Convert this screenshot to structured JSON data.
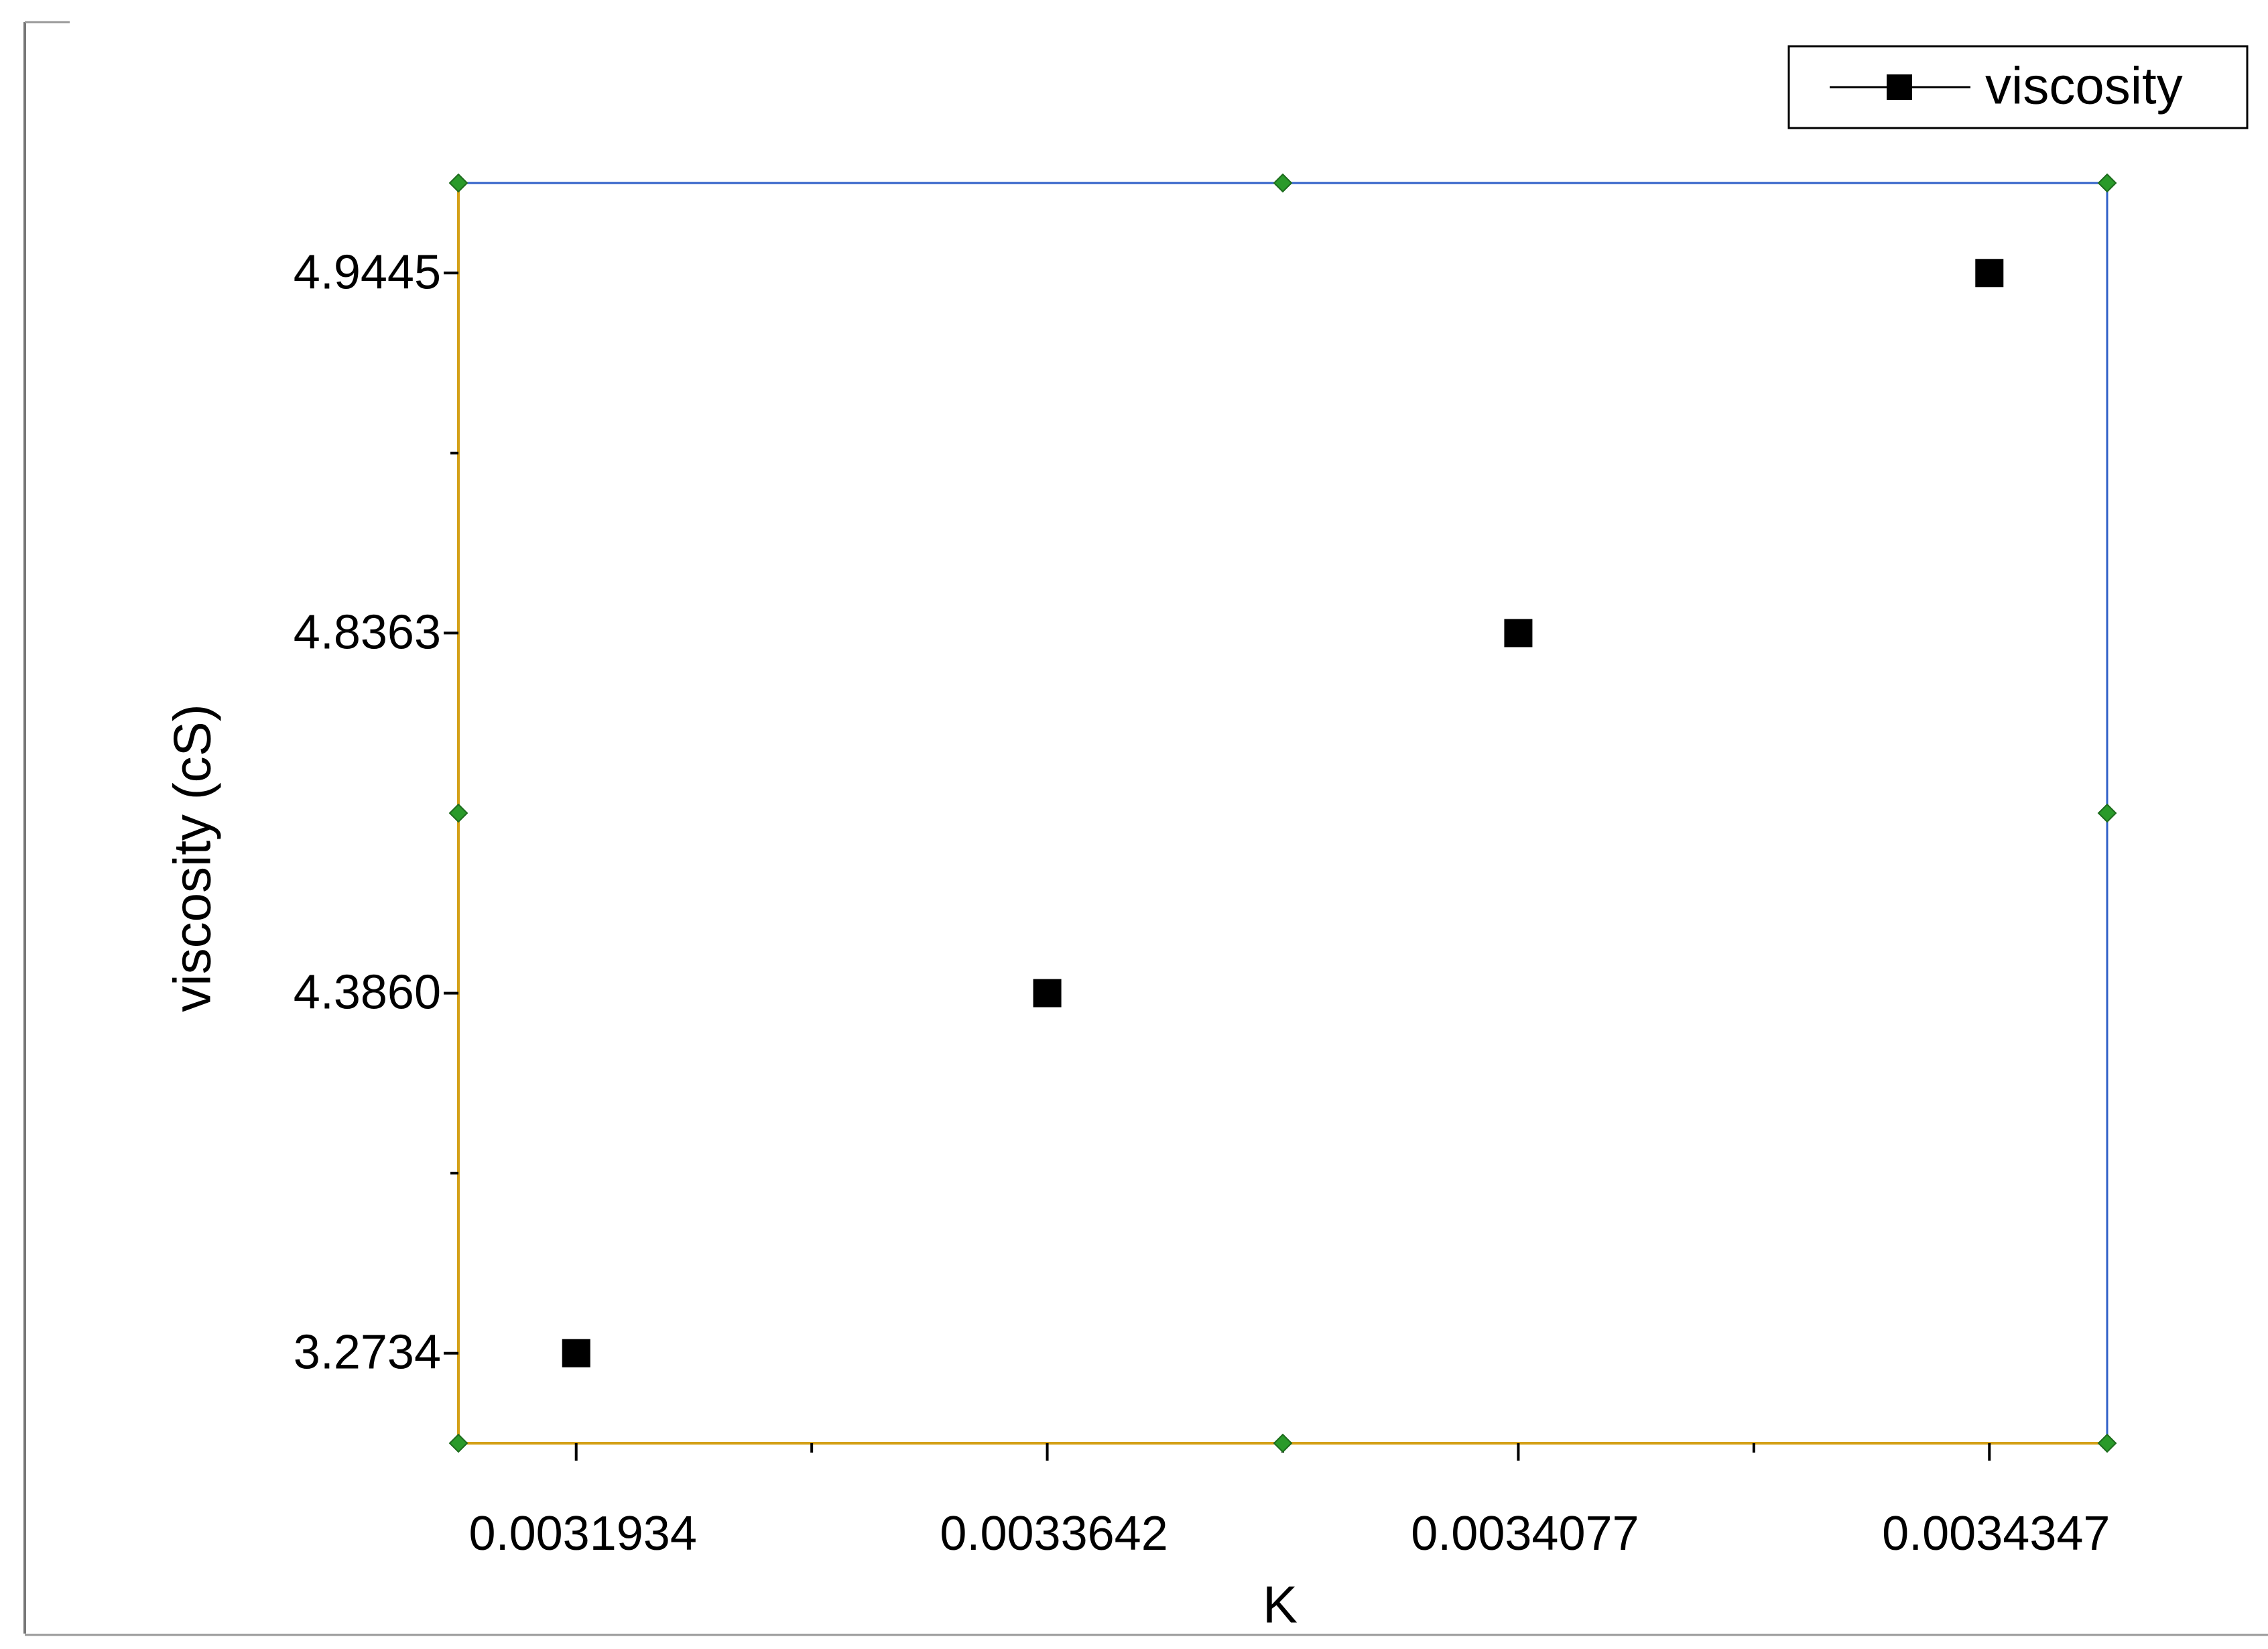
{
  "chart_data": {
    "type": "line",
    "x_label": "K",
    "y_label": "viscosity (cS)",
    "categories": [
      "0.0031934",
      "0.0033642",
      "0.0034077",
      "0.0034347"
    ],
    "series": [
      {
        "name": "viscosity",
        "color": "#000000",
        "values": [
          3.2734,
          4.386,
          4.8363,
          4.9445
        ]
      }
    ],
    "y_scale": "ordinal",
    "yticks": [
      3.2734,
      {
        "value": 4.386,
        "label": "4.3860"
      },
      4.8363,
      4.9445
    ],
    "legend": "top-right",
    "grid": false
  }
}
